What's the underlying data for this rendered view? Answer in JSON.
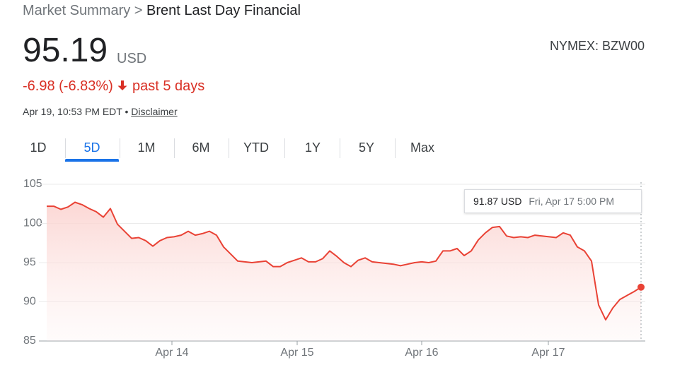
{
  "header": {
    "breadcrumb": "Market Summary >",
    "name": "Brent Last Day Financial",
    "price": "95.19",
    "currency": "USD",
    "exchange": "NYMEX: BZW00",
    "change": "-6.98 (-6.83%)",
    "period": "past 5 days",
    "timestamp": "Apr 19, 10:53 PM EDT •",
    "disclaimer": "Disclaimer"
  },
  "tabs": {
    "items": [
      "1D",
      "5D",
      "1M",
      "6M",
      "YTD",
      "1Y",
      "5Y",
      "Max"
    ],
    "selected": 1
  },
  "tooltip": {
    "price": "91.87 USD",
    "time": "Fri, Apr 17 5:00 PM"
  },
  "chart_data": {
    "type": "line",
    "color": "#e94235",
    "values": [
      102.2,
      102.2,
      101.8,
      102.1,
      102.7,
      102.4,
      101.9,
      101.5,
      100.8,
      101.9,
      99.9,
      99.0,
      98.1,
      98.2,
      97.8,
      97.1,
      97.8,
      98.2,
      98.3,
      98.5,
      99.0,
      98.5,
      98.7,
      99.0,
      98.5,
      97.0,
      96.1,
      95.2,
      95.1,
      95.0,
      95.1,
      95.2,
      94.5,
      94.5,
      95.0,
      95.3,
      95.6,
      95.1,
      95.1,
      95.5,
      96.5,
      95.8,
      95.0,
      94.5,
      95.3,
      95.6,
      95.1,
      95.0,
      94.9,
      94.8,
      94.6,
      94.8,
      95.0,
      95.1,
      95.0,
      95.2,
      96.5,
      96.5,
      96.8,
      95.9,
      96.5,
      97.9,
      98.8,
      99.5,
      99.6,
      98.4,
      98.2,
      98.3,
      98.2,
      98.5,
      98.4,
      98.3,
      98.2,
      98.8,
      98.5,
      97.0,
      96.5,
      95.2,
      89.6,
      87.7,
      89.2,
      90.3,
      90.8,
      91.3,
      91.87
    ],
    "xlim": [
      0,
      84
    ],
    "xticks": [
      {
        "value": 17.7,
        "label": "Apr 14"
      },
      {
        "value": 35.4,
        "label": "Apr 15"
      },
      {
        "value": 53,
        "label": "Apr 16"
      },
      {
        "value": 70.9,
        "label": "Apr 17"
      }
    ],
    "ylim": [
      85,
      105
    ],
    "yticks": [
      85,
      90,
      95,
      100,
      105
    ],
    "grid": true
  }
}
